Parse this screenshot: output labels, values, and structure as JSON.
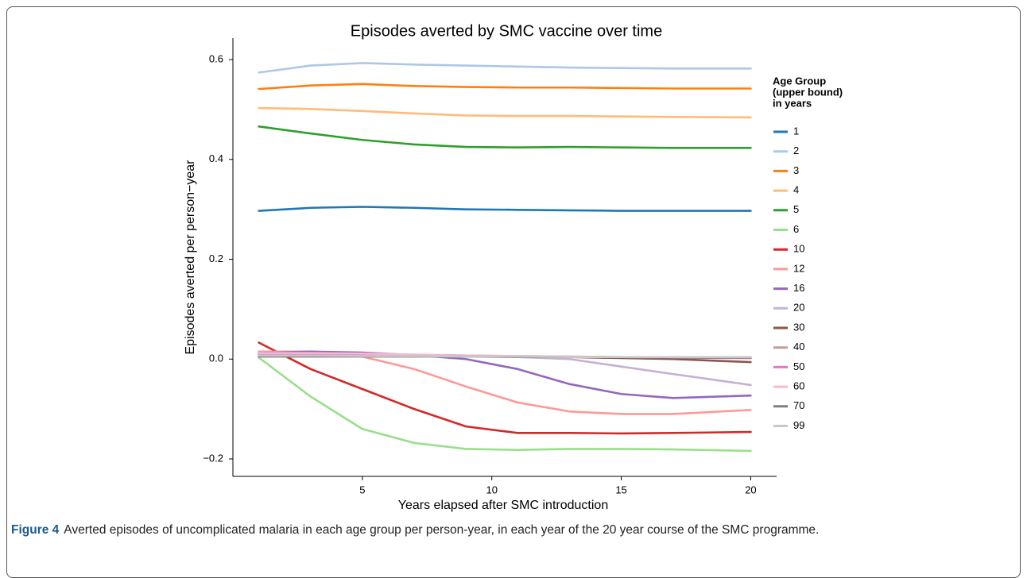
{
  "chart_data": {
    "type": "line",
    "title": "Episodes averted by SMC vaccine over time",
    "xlabel": "Years elapsed after SMC introduction",
    "ylabel": "Episodes averted per person−year",
    "legend_title": [
      "Age Group",
      "(upper bound)",
      "in years"
    ],
    "x": [
      1,
      3,
      5,
      7,
      9,
      11,
      13,
      15,
      17,
      20
    ],
    "xlim": [
      0,
      21
    ],
    "xticks": [
      5,
      10,
      15,
      20
    ],
    "ylim": [
      -0.235,
      0.643
    ],
    "yticks": [
      {
        "value": -0.2,
        "label": "−0.2"
      },
      {
        "value": 0,
        "label": "0.0"
      },
      0.2,
      0.4,
      0.6
    ],
    "series": [
      {
        "name": "1",
        "color": "#1f77b4",
        "values": [
          0.297,
          0.303,
          0.305,
          0.303,
          0.3,
          0.299,
          0.298,
          0.297,
          0.297,
          0.297
        ]
      },
      {
        "name": "2",
        "color": "#aec7e8",
        "values": [
          0.574,
          0.588,
          0.593,
          0.59,
          0.588,
          0.586,
          0.584,
          0.583,
          0.582,
          0.582
        ]
      },
      {
        "name": "3",
        "color": "#ff7f0e",
        "values": [
          0.541,
          0.548,
          0.551,
          0.547,
          0.545,
          0.544,
          0.544,
          0.543,
          0.542,
          0.542
        ]
      },
      {
        "name": "4",
        "color": "#ffbb78",
        "values": [
          0.503,
          0.501,
          0.497,
          0.492,
          0.488,
          0.487,
          0.487,
          0.486,
          0.485,
          0.484
        ]
      },
      {
        "name": "5",
        "color": "#2ca02c",
        "values": [
          0.466,
          0.452,
          0.439,
          0.43,
          0.425,
          0.424,
          0.425,
          0.424,
          0.423,
          0.423
        ]
      },
      {
        "name": "6",
        "color": "#98df8a",
        "values": [
          0.003,
          -0.075,
          -0.14,
          -0.168,
          -0.18,
          -0.182,
          -0.18,
          -0.18,
          -0.181,
          -0.184
        ]
      },
      {
        "name": "10",
        "color": "#d62728",
        "values": [
          0.033,
          -0.02,
          -0.06,
          -0.1,
          -0.135,
          -0.148,
          -0.148,
          -0.149,
          -0.148,
          -0.146
        ]
      },
      {
        "name": "12",
        "color": "#ff9896",
        "values": [
          0.015,
          0.015,
          0.005,
          -0.02,
          -0.055,
          -0.087,
          -0.105,
          -0.11,
          -0.11,
          -0.102
        ]
      },
      {
        "name": "16",
        "color": "#9467bd",
        "values": [
          0.012,
          0.015,
          0.013,
          0.008,
          0.0,
          -0.02,
          -0.05,
          -0.07,
          -0.078,
          -0.073
        ]
      },
      {
        "name": "20",
        "color": "#c5b0d5",
        "values": [
          0.008,
          0.008,
          0.008,
          0.007,
          0.006,
          0.004,
          0.0,
          -0.015,
          -0.03,
          -0.052
        ]
      },
      {
        "name": "30",
        "color": "#8c564b",
        "values": [
          0.01,
          0.01,
          0.009,
          0.008,
          0.007,
          0.005,
          0.004,
          0.002,
          0.0,
          -0.006
        ]
      },
      {
        "name": "40",
        "color": "#c49c94",
        "values": [
          0.01,
          0.01,
          0.009,
          0.008,
          0.007,
          0.006,
          0.005,
          0.004,
          0.003,
          0.002
        ]
      },
      {
        "name": "50",
        "color": "#e377c2",
        "values": [
          0.008,
          0.008,
          0.007,
          0.007,
          0.006,
          0.005,
          0.004,
          0.004,
          0.003,
          0.002
        ]
      },
      {
        "name": "60",
        "color": "#f7b6d2",
        "values": [
          0.012,
          0.012,
          0.011,
          0.009,
          0.007,
          0.006,
          0.005,
          0.004,
          0.004,
          0.003
        ]
      },
      {
        "name": "70",
        "color": "#7f7f7f",
        "values": [
          0.005,
          0.005,
          0.005,
          0.005,
          0.005,
          0.004,
          0.004,
          0.004,
          0.003,
          0.003
        ]
      },
      {
        "name": "99",
        "color": "#c7c7c7",
        "values": [
          0.007,
          0.007,
          0.006,
          0.006,
          0.005,
          0.005,
          0.004,
          0.004,
          0.004,
          0.004
        ]
      }
    ]
  },
  "caption": {
    "label": "Figure 4",
    "text": "Averted episodes of uncomplicated malaria in each age group per person-year, in each year of the 20 year course of the SMC programme."
  }
}
